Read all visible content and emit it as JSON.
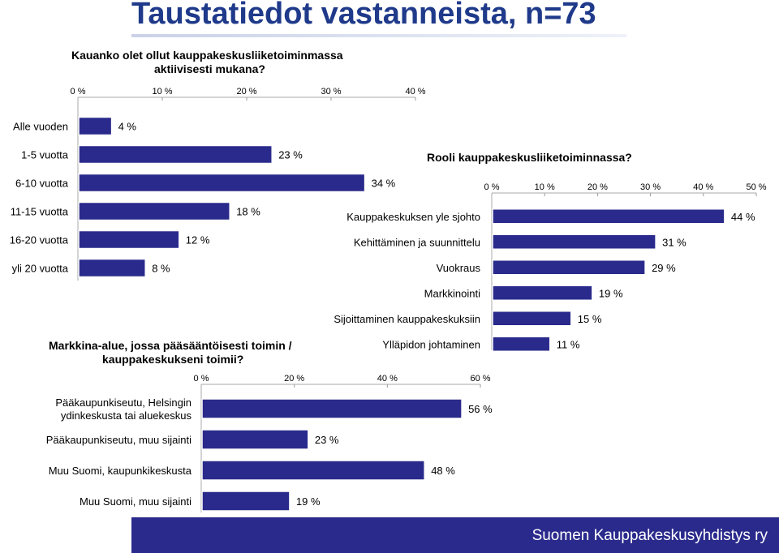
{
  "slide": {
    "title": "Taustatiedot vastanneista, n=73",
    "footer": "Suomen Kauppakeskusyhdistys ry"
  },
  "colors": {
    "bar": "#2a2a8c",
    "title": "#1f3a8a",
    "footer": "#2a2a8c"
  },
  "chart_data": [
    {
      "type": "bar",
      "orientation": "horizontal",
      "title_lines": [
        "Kauanko olet ollut kauppakeskusliiketoiminmassa",
        "aktiivisesti mukana?"
      ],
      "categories": [
        "Alle vuoden",
        "1-5 vuotta",
        "6-10 vuotta",
        "11-15 vuotta",
        "16-20 vuotta",
        "yli 20 vuotta"
      ],
      "values": [
        4,
        23,
        34,
        18,
        12,
        8
      ],
      "data_labels": [
        "4 %",
        "23 %",
        "34 %",
        "18 %",
        "12 %",
        "8 %"
      ],
      "xlim": [
        0,
        40
      ],
      "ticks": [
        "0 %",
        "10 %",
        "20 %",
        "30 %",
        "40 %"
      ]
    },
    {
      "type": "bar",
      "orientation": "horizontal",
      "title_lines": [
        "Rooli kauppakeskusliiketoiminnassa?"
      ],
      "categories": [
        "Kauppakeskuksen yle sjohto",
        "Kehittäminen ja suunnittelu",
        "Vuokraus",
        "Markkinointi",
        "Sijoittaminen kauppakeskuksiin",
        "Ylläpidon johtaminen"
      ],
      "values": [
        44,
        31,
        29,
        19,
        15,
        11
      ],
      "data_labels": [
        "44 %",
        "31 %",
        "29 %",
        "19 %",
        "15 %",
        "11 %"
      ],
      "xlim": [
        0,
        50
      ],
      "ticks": [
        "0 %",
        "10 %",
        "20 %",
        "30 %",
        "40 %",
        "50 %"
      ]
    },
    {
      "type": "bar",
      "orientation": "horizontal",
      "title_lines": [
        "Markkina-alue, jossa pääsääntöisesti toimin /",
        "kauppakeskukseni toimii?"
      ],
      "categories": [
        [
          "Pääkaupunkiseutu, Helsingin",
          "ydinkeskusta tai aluekeskus"
        ],
        [
          "Pääkaupunkiseutu, muu sijainti"
        ],
        [
          "Muu Suomi, kaupunkikeskusta"
        ],
        [
          "Muu Suomi, muu sijainti"
        ]
      ],
      "values": [
        56,
        23,
        48,
        19
      ],
      "data_labels": [
        "56 %",
        "23 %",
        "48 %",
        "19 %"
      ],
      "xlim": [
        0,
        60
      ],
      "ticks": [
        "0 %",
        "20 %",
        "40 %",
        "60 %"
      ]
    }
  ]
}
